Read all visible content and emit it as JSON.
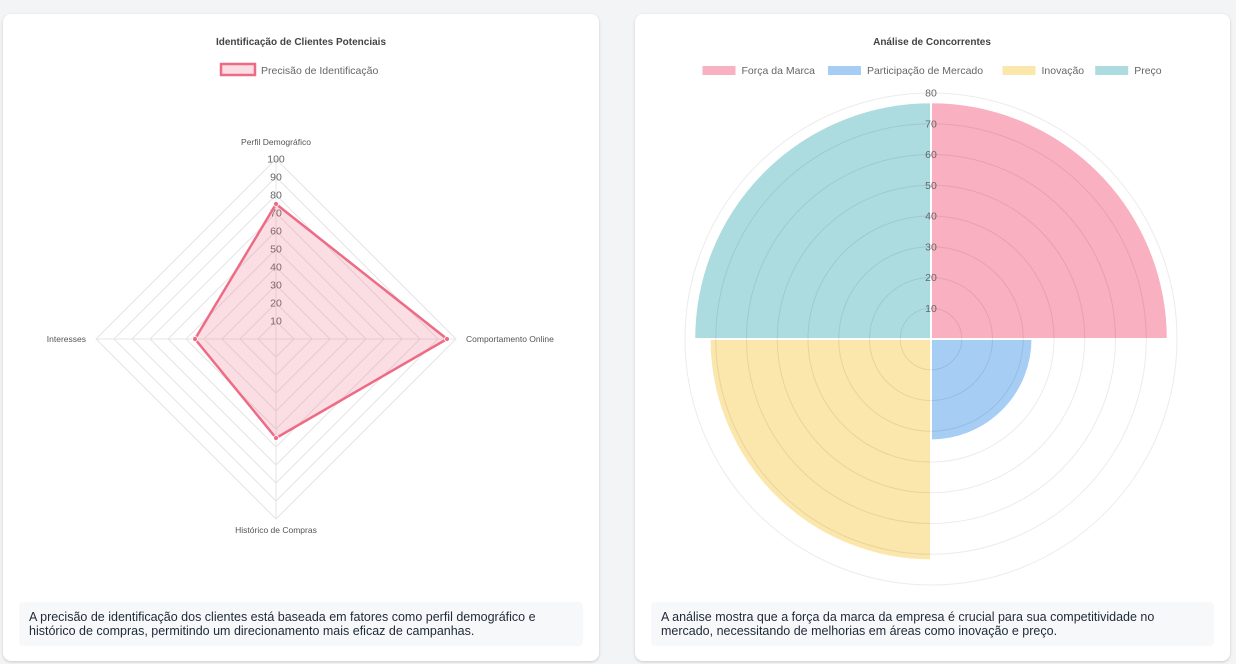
{
  "left_card": {
    "caption": "A precisão de identificação dos clientes está baseada em fatores como perfil demográfico e histórico de compras, permitindo um direcionamento mais eficaz de campanhas."
  },
  "right_card": {
    "caption": "A análise mostra que a força da marca da empresa é crucial para sua competitividade no mercado, necessitando de melhorias em áreas como inovação e preço."
  },
  "chart_data": [
    {
      "type": "radar",
      "title": "Identificação de Clientes Potenciais",
      "labels": [
        "Perfil Demográfico",
        "Comportamento Online",
        "Histórico de Compras",
        "Interesses"
      ],
      "series": [
        {
          "name": "Precisão de Identificação",
          "values": [
            75,
            95,
            55,
            45
          ],
          "color": "#ee6b85",
          "fill": "rgba(238,107,133,0.22)"
        }
      ],
      "r_ticks": [
        10,
        20,
        30,
        40,
        50,
        60,
        70,
        80,
        90,
        100
      ],
      "rlim": [
        0,
        100
      ],
      "legend": "top"
    },
    {
      "type": "polarArea",
      "title": "Análise de Concorrentes",
      "categories": [
        "Força da Marca",
        "Participação de Mercado",
        "Inovação",
        "Preço"
      ],
      "values": [
        77,
        33,
        72,
        77
      ],
      "colors": [
        "#f9b0c1",
        "#a6cdf4",
        "#fbe6ab",
        "#acdcdf"
      ],
      "r_ticks": [
        10,
        20,
        30,
        40,
        50,
        60,
        70,
        80
      ],
      "rlim": [
        0,
        80
      ],
      "legend": "top"
    }
  ]
}
